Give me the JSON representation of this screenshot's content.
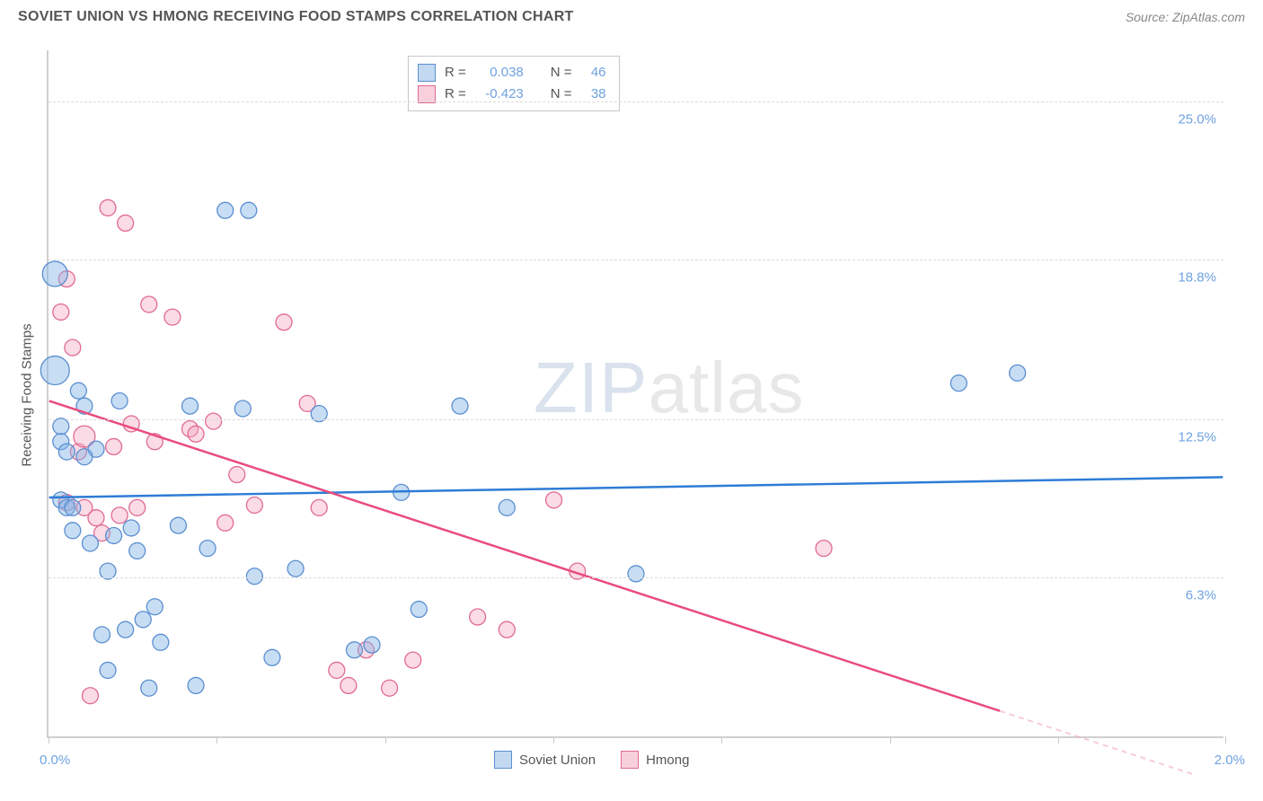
{
  "header": {
    "title": "SOVIET UNION VS HMONG RECEIVING FOOD STAMPS CORRELATION CHART",
    "source_prefix": "Source: ",
    "source_name": "ZipAtlas.com"
  },
  "watermark": {
    "zip": "ZIP",
    "atlas": "atlas"
  },
  "axes": {
    "y_title": "Receiving Food Stamps",
    "x_min_label": "0.0%",
    "x_max_label": "2.0%",
    "xlim": [
      0.0,
      2.0
    ],
    "ylim": [
      0.0,
      27.0
    ],
    "y_ticks": [
      {
        "value": 6.3,
        "label": "6.3%"
      },
      {
        "value": 12.5,
        "label": "12.5%"
      },
      {
        "value": 18.8,
        "label": "18.8%"
      },
      {
        "value": 25.0,
        "label": "25.0%"
      }
    ],
    "x_tick_values": [
      0.0,
      0.286,
      0.572,
      0.858,
      1.144,
      1.43,
      1.716,
      2.0
    ]
  },
  "stats_legend": {
    "rows": [
      {
        "swatch": "blue",
        "r_label": "R =",
        "r_value": "0.038",
        "n_label": "N =",
        "n_value": "46"
      },
      {
        "swatch": "pink",
        "r_label": "R =",
        "r_value": "-0.423",
        "n_label": "N =",
        "n_value": "38"
      }
    ]
  },
  "bottom_legend": {
    "items": [
      {
        "swatch": "blue",
        "label": "Soviet Union"
      },
      {
        "swatch": "pink",
        "label": "Hmong"
      }
    ]
  },
  "colors": {
    "blue_fill": "rgba(130,180,230,0.45)",
    "blue_stroke": "#5b8fd0",
    "blue_line": "#2e7cd6",
    "pink_fill": "rgba(245,165,190,0.40)",
    "pink_stroke": "#e06a92",
    "pink_line": "#e84c7d",
    "pink_line_dash": "rgba(240,170,190,0.6)",
    "grid": "#dcdcdc",
    "axis": "#d0d0d0",
    "tick_text": "#6fa3e0"
  },
  "trend_lines": {
    "blue": {
      "x1": 0.0,
      "y1": 9.4,
      "x2": 2.0,
      "y2": 10.2
    },
    "pink_solid": {
      "x1": 0.0,
      "y1": 13.2,
      "x2": 1.62,
      "y2": 1.0
    },
    "pink_dash": {
      "x1": 1.62,
      "y1": 1.0,
      "x2": 1.95,
      "y2": -1.5
    }
  },
  "series": {
    "soviet_union": {
      "marker_radius": 9,
      "points": [
        {
          "x": 0.01,
          "y": 18.2,
          "r": 14
        },
        {
          "x": 0.01,
          "y": 14.4,
          "r": 16
        },
        {
          "x": 0.02,
          "y": 12.2
        },
        {
          "x": 0.02,
          "y": 11.6
        },
        {
          "x": 0.03,
          "y": 11.2
        },
        {
          "x": 0.02,
          "y": 9.3
        },
        {
          "x": 0.03,
          "y": 9.0
        },
        {
          "x": 0.04,
          "y": 8.1
        },
        {
          "x": 0.05,
          "y": 13.6
        },
        {
          "x": 0.06,
          "y": 13.0
        },
        {
          "x": 0.07,
          "y": 7.6
        },
        {
          "x": 0.08,
          "y": 11.3
        },
        {
          "x": 0.09,
          "y": 4.0
        },
        {
          "x": 0.1,
          "y": 6.5
        },
        {
          "x": 0.1,
          "y": 2.6
        },
        {
          "x": 0.11,
          "y": 7.9
        },
        {
          "x": 0.12,
          "y": 13.2
        },
        {
          "x": 0.13,
          "y": 4.2
        },
        {
          "x": 0.14,
          "y": 8.2
        },
        {
          "x": 0.15,
          "y": 7.3
        },
        {
          "x": 0.16,
          "y": 4.6
        },
        {
          "x": 0.17,
          "y": 1.9
        },
        {
          "x": 0.18,
          "y": 5.1
        },
        {
          "x": 0.19,
          "y": 3.7
        },
        {
          "x": 0.22,
          "y": 8.3
        },
        {
          "x": 0.24,
          "y": 13.0
        },
        {
          "x": 0.25,
          "y": 2.0
        },
        {
          "x": 0.27,
          "y": 7.4
        },
        {
          "x": 0.3,
          "y": 20.7
        },
        {
          "x": 0.34,
          "y": 20.7
        },
        {
          "x": 0.33,
          "y": 12.9
        },
        {
          "x": 0.35,
          "y": 6.3
        },
        {
          "x": 0.38,
          "y": 3.1
        },
        {
          "x": 0.42,
          "y": 6.6
        },
        {
          "x": 0.46,
          "y": 12.7
        },
        {
          "x": 0.52,
          "y": 3.4
        },
        {
          "x": 0.55,
          "y": 3.6
        },
        {
          "x": 0.6,
          "y": 9.6
        },
        {
          "x": 0.63,
          "y": 5.0
        },
        {
          "x": 0.7,
          "y": 13.0
        },
        {
          "x": 0.78,
          "y": 9.0
        },
        {
          "x": 1.0,
          "y": 6.4
        },
        {
          "x": 1.55,
          "y": 13.9
        },
        {
          "x": 1.65,
          "y": 14.3
        },
        {
          "x": 0.06,
          "y": 11.0
        },
        {
          "x": 0.04,
          "y": 9.0
        }
      ]
    },
    "hmong": {
      "marker_radius": 9,
      "points": [
        {
          "x": 0.02,
          "y": 16.7
        },
        {
          "x": 0.03,
          "y": 18.0
        },
        {
          "x": 0.04,
          "y": 15.3
        },
        {
          "x": 0.05,
          "y": 11.2
        },
        {
          "x": 0.06,
          "y": 9.0
        },
        {
          "x": 0.07,
          "y": 1.6
        },
        {
          "x": 0.08,
          "y": 8.6
        },
        {
          "x": 0.09,
          "y": 8.0
        },
        {
          "x": 0.1,
          "y": 20.8
        },
        {
          "x": 0.11,
          "y": 11.4
        },
        {
          "x": 0.13,
          "y": 20.2
        },
        {
          "x": 0.14,
          "y": 12.3
        },
        {
          "x": 0.15,
          "y": 9.0
        },
        {
          "x": 0.17,
          "y": 17.0
        },
        {
          "x": 0.18,
          "y": 11.6
        },
        {
          "x": 0.21,
          "y": 16.5
        },
        {
          "x": 0.24,
          "y": 12.1
        },
        {
          "x": 0.25,
          "y": 11.9
        },
        {
          "x": 0.28,
          "y": 12.4
        },
        {
          "x": 0.3,
          "y": 8.4
        },
        {
          "x": 0.32,
          "y": 10.3
        },
        {
          "x": 0.35,
          "y": 9.1
        },
        {
          "x": 0.4,
          "y": 16.3
        },
        {
          "x": 0.44,
          "y": 13.1
        },
        {
          "x": 0.46,
          "y": 9.0
        },
        {
          "x": 0.49,
          "y": 2.6
        },
        {
          "x": 0.51,
          "y": 2.0
        },
        {
          "x": 0.54,
          "y": 3.4
        },
        {
          "x": 0.58,
          "y": 1.9
        },
        {
          "x": 0.62,
          "y": 3.0
        },
        {
          "x": 0.73,
          "y": 4.7
        },
        {
          "x": 0.78,
          "y": 4.2
        },
        {
          "x": 0.86,
          "y": 9.3
        },
        {
          "x": 0.9,
          "y": 6.5
        },
        {
          "x": 1.32,
          "y": 7.4
        },
        {
          "x": 0.06,
          "y": 11.8,
          "r": 12
        },
        {
          "x": 0.03,
          "y": 9.2
        },
        {
          "x": 0.12,
          "y": 8.7
        }
      ]
    }
  }
}
